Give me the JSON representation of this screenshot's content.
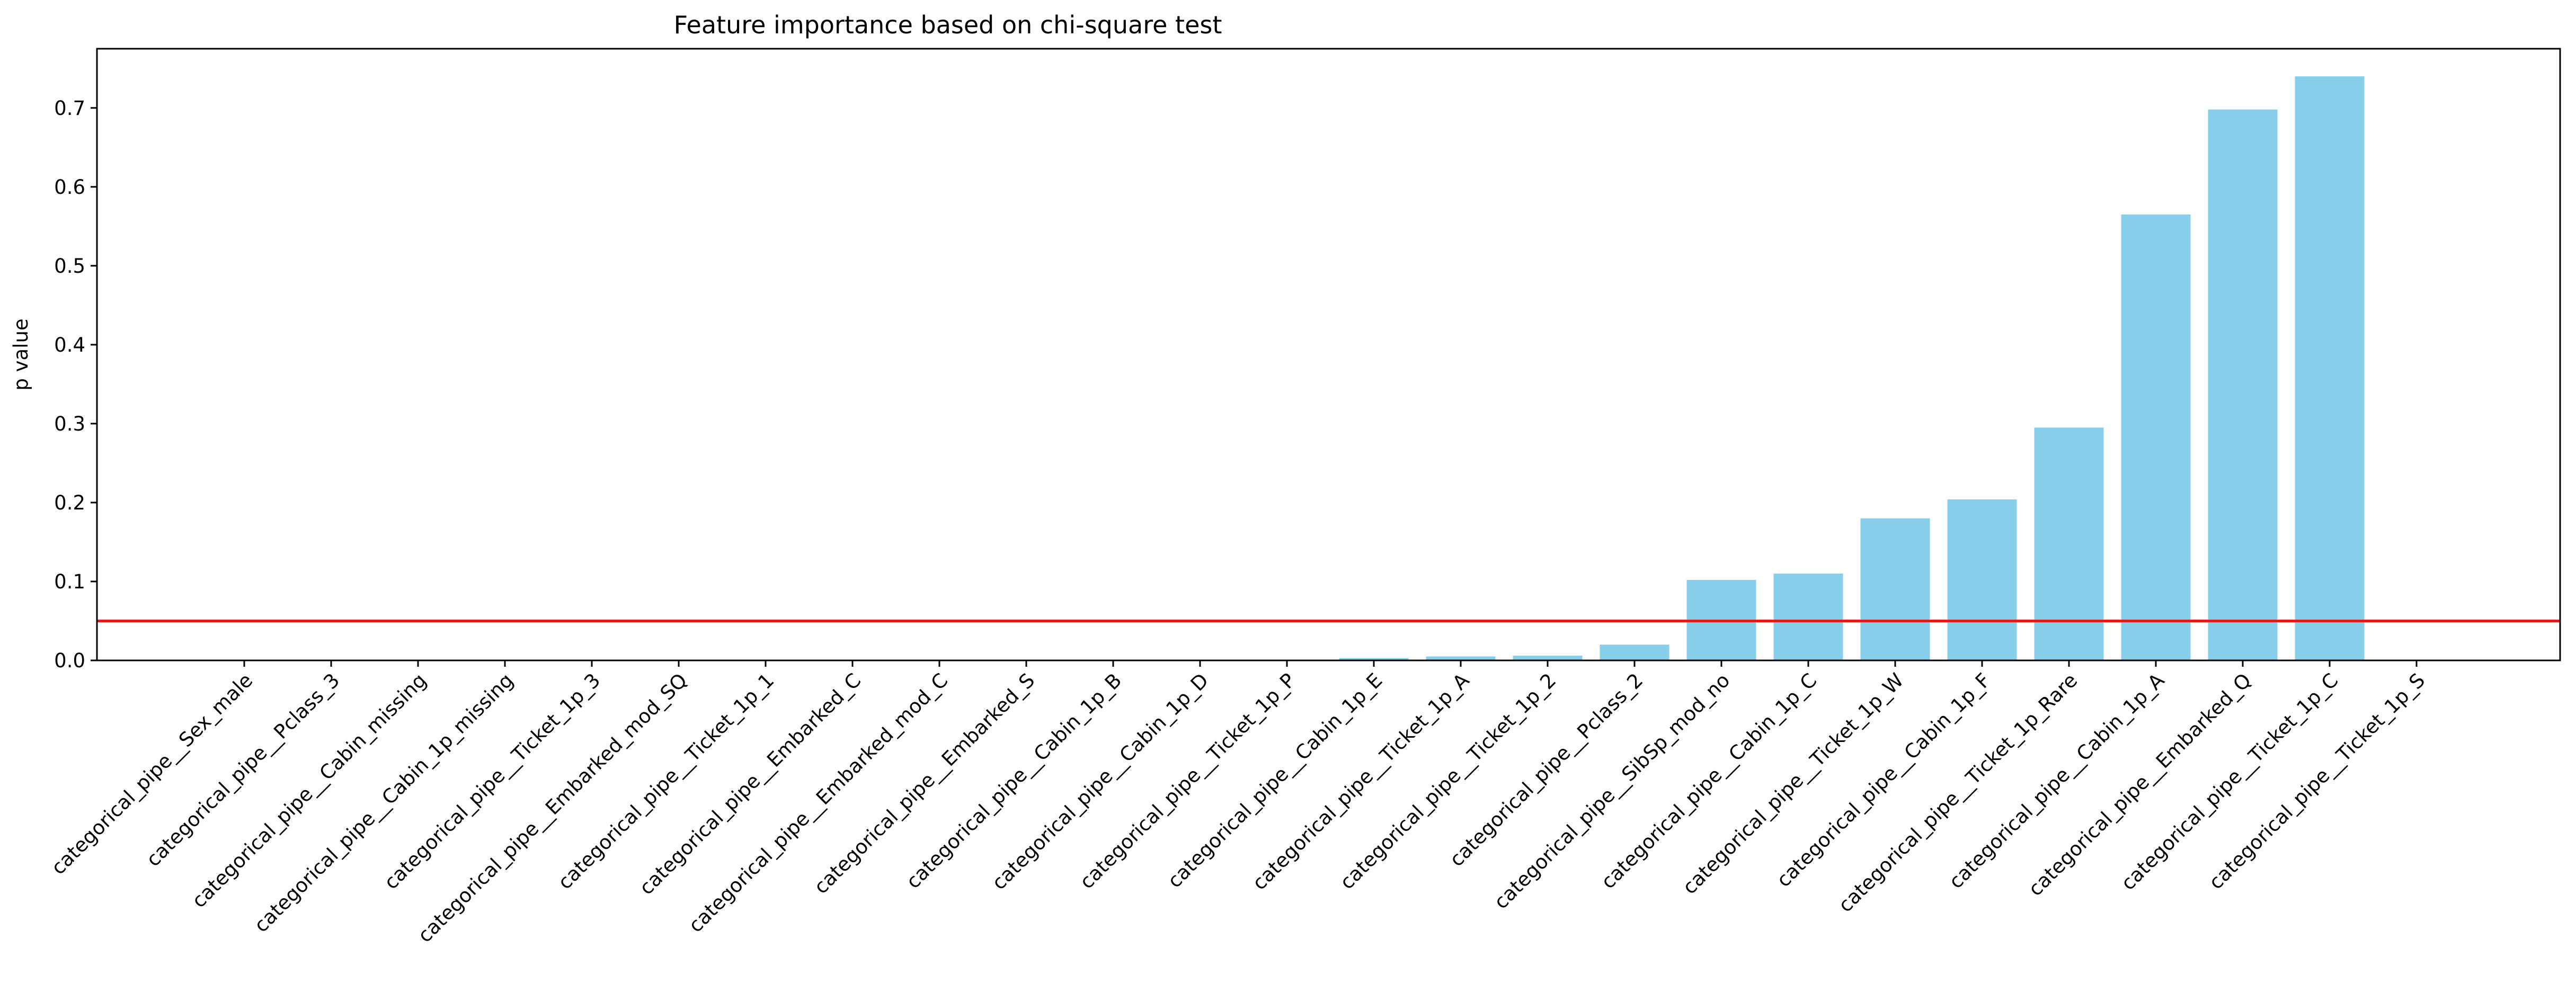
{
  "chart_data": {
    "type": "bar",
    "title": "Feature importance based on chi-square test",
    "xlabel": "",
    "ylabel": "p value",
    "ylim": [
      0,
      0.775
    ],
    "yticks": [
      0.0,
      0.1,
      0.2,
      0.3,
      0.4,
      0.5,
      0.6,
      0.7
    ],
    "ytick_labels": [
      "0.0",
      "0.1",
      "0.2",
      "0.3",
      "0.4",
      "0.5",
      "0.6",
      "0.7"
    ],
    "bar_color": "#87ceeb",
    "threshold": {
      "value": 0.05,
      "color": "#e31a1c"
    },
    "grid": false,
    "categories": [
      "categorical_pipe__Sex_male",
      "categorical_pipe__Pclass_3",
      "categorical_pipe__Cabin_missing",
      "categorical_pipe__Cabin_1p_missing",
      "categorical_pipe__Ticket_1p_3",
      "categorical_pipe__Embarked_mod_SQ",
      "categorical_pipe__Ticket_1p_1",
      "categorical_pipe__Embarked_C",
      "categorical_pipe__Embarked_mod_C",
      "categorical_pipe__Embarked_S",
      "categorical_pipe__Cabin_1p_B",
      "categorical_pipe__Cabin_1p_D",
      "categorical_pipe__Ticket_1p_P",
      "categorical_pipe__Cabin_1p_E",
      "categorical_pipe__Ticket_1p_A",
      "categorical_pipe__Ticket_1p_2",
      "categorical_pipe__Pclass_2",
      "categorical_pipe__SibSp_mod_no",
      "categorical_pipe__Cabin_1p_C",
      "categorical_pipe__Ticket_1p_W",
      "categorical_pipe__Cabin_1p_F",
      "categorical_pipe__Ticket_1p_Rare",
      "categorical_pipe__Cabin_1p_A",
      "categorical_pipe__Embarked_Q",
      "categorical_pipe__Ticket_1p_C",
      "categorical_pipe__Ticket_1p_S"
    ],
    "values": [
      0.0,
      0.0,
      0.0,
      0.0,
      0.0,
      0.0,
      0.0,
      0.0,
      0.0,
      0.0,
      0.0,
      0.0,
      0.0,
      0.003,
      0.005,
      0.006,
      0.02,
      0.102,
      0.11,
      0.18,
      0.204,
      0.295,
      0.565,
      0.698,
      0.74,
      0.0
    ]
  }
}
